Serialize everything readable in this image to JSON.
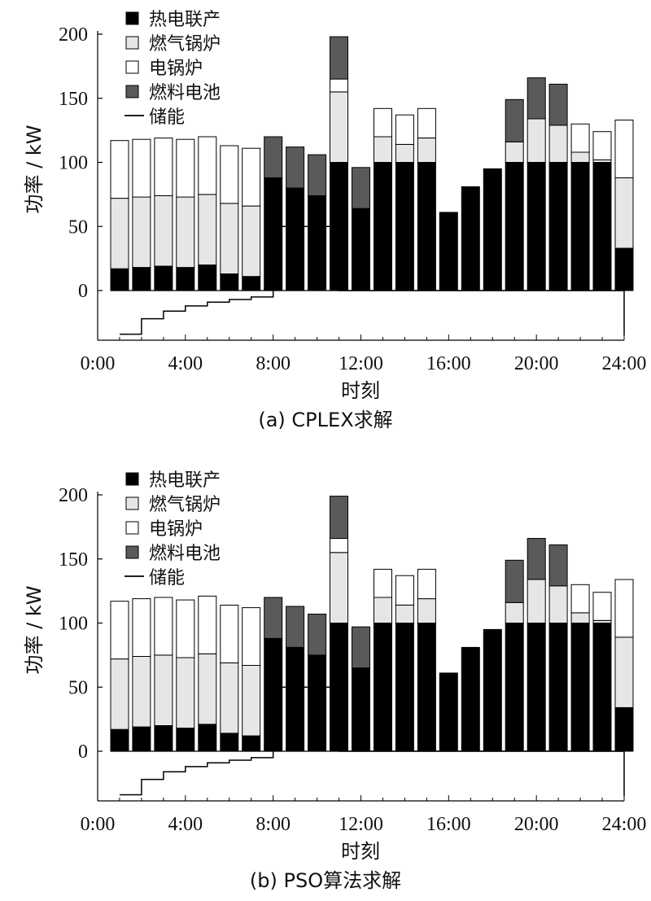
{
  "chart_data": [
    {
      "type": "bar",
      "stacked": true,
      "caption": "(a) CPLEX求解",
      "xlabel": "时刻",
      "ylabel": "功率 / kW",
      "ylim": [
        -35,
        200
      ],
      "xlim": [
        0,
        24
      ],
      "yticks": [
        0,
        50,
        100,
        150,
        200
      ],
      "xtick_labels": [
        "0:00",
        "4:00",
        "8:00",
        "12:00",
        "16:00",
        "20:00",
        "24:00"
      ],
      "legend_position": "top-left",
      "hours": [
        1,
        2,
        3,
        4,
        5,
        6,
        7,
        8,
        9,
        10,
        11,
        12,
        13,
        14,
        15,
        16,
        17,
        18,
        19,
        20,
        21,
        22,
        23,
        24
      ],
      "series": [
        {
          "name": "热电联产",
          "color": "#000000",
          "values": [
            17,
            18,
            19,
            18,
            20,
            13,
            11,
            88,
            80,
            74,
            100,
            64,
            100,
            100,
            100,
            61,
            81,
            95,
            100,
            100,
            100,
            100,
            100,
            33
          ]
        },
        {
          "name": "燃气锅炉",
          "color": "#e6e6e6",
          "values": [
            55,
            55,
            55,
            55,
            55,
            55,
            55,
            0,
            0,
            0,
            55,
            0,
            20,
            14,
            19,
            0,
            0,
            0,
            16,
            34,
            29,
            8,
            2,
            55
          ]
        },
        {
          "name": "电锅炉",
          "color": "#ffffff",
          "values": [
            45,
            45,
            45,
            45,
            45,
            45,
            45,
            0,
            0,
            0,
            10,
            0,
            22,
            23,
            23,
            0,
            0,
            0,
            0,
            0,
            0,
            22,
            22,
            45
          ]
        },
        {
          "name": "燃料电池",
          "color": "#5a5a5a",
          "values": [
            0,
            0,
            0,
            0,
            0,
            0,
            0,
            32,
            32,
            32,
            33,
            32,
            0,
            0,
            0,
            0,
            0,
            0,
            33,
            32,
            32,
            0,
            0,
            0
          ]
        }
      ],
      "storage": {
        "name": "储能",
        "steps": [
          [
            1,
            -34
          ],
          [
            2,
            -22
          ],
          [
            3,
            -16
          ],
          [
            4,
            -12
          ],
          [
            5,
            -9
          ],
          [
            6,
            -7
          ],
          [
            7,
            -5
          ],
          [
            8,
            50
          ],
          [
            9,
            50
          ],
          [
            10,
            50
          ],
          [
            11,
            0
          ],
          [
            24,
            0
          ],
          [
            24,
            -35
          ]
        ]
      }
    },
    {
      "type": "bar",
      "stacked": true,
      "caption": "(b)  PSO算法求解",
      "xlabel": "时刻",
      "ylabel": "功率 / kW",
      "ylim": [
        -35,
        200
      ],
      "xlim": [
        0,
        24
      ],
      "yticks": [
        0,
        50,
        100,
        150,
        200
      ],
      "xtick_labels": [
        "0:00",
        "4:00",
        "8:00",
        "12:00",
        "16:00",
        "20:00",
        "24:00"
      ],
      "legend_position": "top-left",
      "hours": [
        1,
        2,
        3,
        4,
        5,
        6,
        7,
        8,
        9,
        10,
        11,
        12,
        13,
        14,
        15,
        16,
        17,
        18,
        19,
        20,
        21,
        22,
        23,
        24
      ],
      "series": [
        {
          "name": "热电联产",
          "color": "#000000",
          "values": [
            17,
            19,
            20,
            18,
            21,
            14,
            12,
            88,
            81,
            75,
            100,
            65,
            100,
            100,
            100,
            61,
            81,
            95,
            100,
            100,
            100,
            100,
            100,
            34
          ]
        },
        {
          "name": "燃气锅炉",
          "color": "#e6e6e6",
          "values": [
            55,
            55,
            55,
            55,
            55,
            55,
            55,
            0,
            0,
            0,
            55,
            0,
            20,
            14,
            19,
            0,
            0,
            0,
            16,
            34,
            29,
            8,
            2,
            55
          ]
        },
        {
          "name": "电锅炉",
          "color": "#ffffff",
          "values": [
            45,
            45,
            45,
            45,
            45,
            45,
            45,
            0,
            0,
            0,
            11,
            0,
            22,
            23,
            23,
            0,
            0,
            0,
            0,
            0,
            0,
            22,
            22,
            45
          ]
        },
        {
          "name": "燃料电池",
          "color": "#5a5a5a",
          "values": [
            0,
            0,
            0,
            0,
            0,
            0,
            0,
            32,
            32,
            32,
            33,
            32,
            0,
            0,
            0,
            0,
            0,
            0,
            33,
            32,
            32,
            0,
            0,
            0
          ]
        }
      ],
      "storage": {
        "name": "储能",
        "steps": [
          [
            1,
            -34
          ],
          [
            2,
            -22
          ],
          [
            3,
            -16
          ],
          [
            4,
            -12
          ],
          [
            5,
            -9
          ],
          [
            6,
            -7
          ],
          [
            7,
            -5
          ],
          [
            8,
            50
          ],
          [
            9,
            50
          ],
          [
            10,
            50
          ],
          [
            11,
            0
          ],
          [
            24,
            0
          ],
          [
            24,
            -35
          ]
        ]
      }
    }
  ]
}
